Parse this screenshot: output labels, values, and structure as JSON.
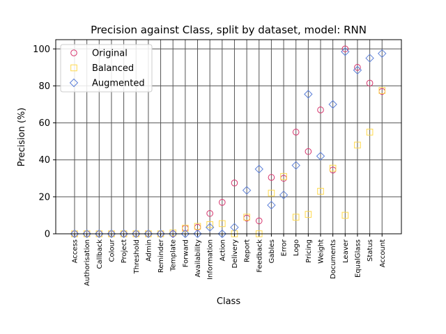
{
  "chart_data": {
    "type": "scatter",
    "title": "Precision against Class, split by dataset, model: RNN",
    "xlabel": "Class",
    "ylabel": "Precision (%)",
    "ylim": [
      0,
      105
    ],
    "yticks": [
      0,
      20,
      40,
      60,
      80,
      100
    ],
    "grid": true,
    "legend_position": "top-left",
    "categories": [
      "Access",
      "Authorisation",
      "Callback",
      "Colour",
      "Project",
      "Threshold",
      "Admin",
      "Reminder",
      "Template",
      "Forward",
      "Availability",
      "Information",
      "Action",
      "Delivery",
      "Report",
      "Feedback",
      "Gables",
      "Error",
      "Logo",
      "Pricing",
      "Weight",
      "Documents",
      "Leaver",
      "EqualGlass",
      "Status",
      "Account"
    ],
    "series": [
      {
        "name": "Original",
        "marker": "circle",
        "color": "#d6336c",
        "values": [
          0,
          0,
          0,
          0,
          0,
          0,
          0,
          0,
          0,
          3,
          3.5,
          11,
          17,
          27.5,
          8.5,
          7,
          30.5,
          30,
          55,
          44.5,
          67,
          34.5,
          100,
          90,
          81.5,
          77
        ]
      },
      {
        "name": "Balanced",
        "marker": "square",
        "color": "#ffd84a",
        "values": [
          0,
          0,
          0,
          0,
          0,
          0,
          0,
          0,
          0.5,
          3,
          4,
          5,
          5.5,
          0,
          9,
          0,
          22,
          31,
          9,
          10.5,
          23,
          35.5,
          10,
          48,
          55,
          77.5
        ]
      },
      {
        "name": "Augmented",
        "marker": "diamond",
        "color": "#5b7fd8",
        "values": [
          0,
          0,
          0,
          0,
          0,
          0,
          0,
          0,
          0,
          0,
          0,
          3.5,
          0,
          3.5,
          23.5,
          35,
          15.5,
          21,
          37,
          75.5,
          42,
          70,
          98.5,
          88.5,
          95,
          97.5
        ]
      }
    ]
  }
}
